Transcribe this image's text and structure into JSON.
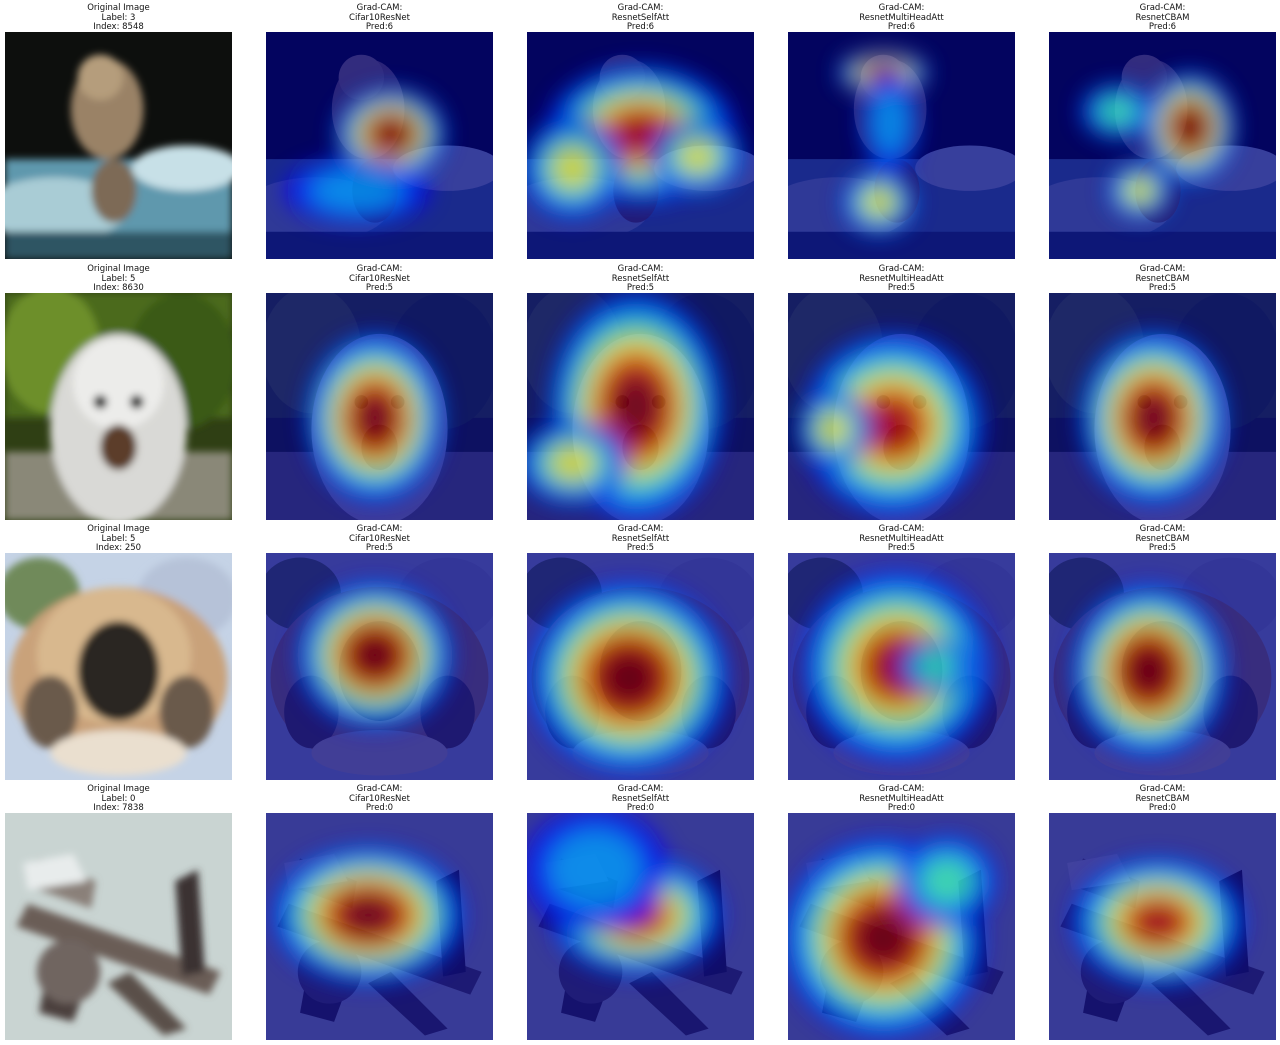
{
  "figure": {
    "rows": [
      {
        "panels": [
          {
            "lines": [
              "Original Image",
              "Label: 3",
              "Index: 8548"
            ],
            "kind": "original",
            "subject": "cat on a car"
          },
          {
            "lines": [
              "Grad-CAM:",
              "Cifar10ResNet",
              "Pred:6"
            ],
            "kind": "heatmap"
          },
          {
            "lines": [
              "Grad-CAM:",
              "ResnetSelfAtt",
              "Pred:6"
            ],
            "kind": "heatmap"
          },
          {
            "lines": [
              "Grad-CAM:",
              "ResnetMultiHeadAtt",
              "Pred:6"
            ],
            "kind": "heatmap"
          },
          {
            "lines": [
              "Grad-CAM:",
              "ResnetCBAM",
              "Pred:6"
            ],
            "kind": "heatmap"
          }
        ]
      },
      {
        "panels": [
          {
            "lines": [
              "Original Image",
              "Label: 5",
              "Index: 8630"
            ],
            "kind": "original",
            "subject": "white dog in foliage"
          },
          {
            "lines": [
              "Grad-CAM:",
              "Cifar10ResNet",
              "Pred:5"
            ],
            "kind": "heatmap"
          },
          {
            "lines": [
              "Grad-CAM:",
              "ResnetSelfAtt",
              "Pred:5"
            ],
            "kind": "heatmap"
          },
          {
            "lines": [
              "Grad-CAM:",
              "ResnetMultiHeadAtt",
              "Pred:5"
            ],
            "kind": "heatmap"
          },
          {
            "lines": [
              "Grad-CAM:",
              "ResnetCBAM",
              "Pred:5"
            ],
            "kind": "heatmap"
          }
        ]
      },
      {
        "panels": [
          {
            "lines": [
              "Original Image",
              "Label: 5",
              "Index: 250"
            ],
            "kind": "original",
            "subject": "fluffy dog close-up"
          },
          {
            "lines": [
              "Grad-CAM:",
              "Cifar10ResNet",
              "Pred:5"
            ],
            "kind": "heatmap"
          },
          {
            "lines": [
              "Grad-CAM:",
              "ResnetSelfAtt",
              "Pred:5"
            ],
            "kind": "heatmap"
          },
          {
            "lines": [
              "Grad-CAM:",
              "ResnetMultiHeadAtt",
              "Pred:5"
            ],
            "kind": "heatmap"
          },
          {
            "lines": [
              "Grad-CAM:",
              "ResnetCBAM",
              "Pred:5"
            ],
            "kind": "heatmap"
          }
        ]
      },
      {
        "panels": [
          {
            "lines": [
              "Original Image",
              "Label: 0",
              "Index: 7838"
            ],
            "kind": "original",
            "subject": "airplane"
          },
          {
            "lines": [
              "Grad-CAM:",
              "Cifar10ResNet",
              "Pred:0"
            ],
            "kind": "heatmap"
          },
          {
            "lines": [
              "Grad-CAM:",
              "ResnetSelfAtt",
              "Pred:0"
            ],
            "kind": "heatmap"
          },
          {
            "lines": [
              "Grad-CAM:",
              "ResnetMultiHeadAtt",
              "Pred:0"
            ],
            "kind": "heatmap"
          },
          {
            "lines": [
              "Grad-CAM:",
              "ResnetCBAM",
              "Pred:0"
            ],
            "kind": "heatmap"
          }
        ]
      }
    ],
    "colormap": [
      "#00007f",
      "#0000ff",
      "#00a0ff",
      "#40ffb7",
      "#ffff00",
      "#ff6000",
      "#bf0000",
      "#7f0000"
    ]
  }
}
